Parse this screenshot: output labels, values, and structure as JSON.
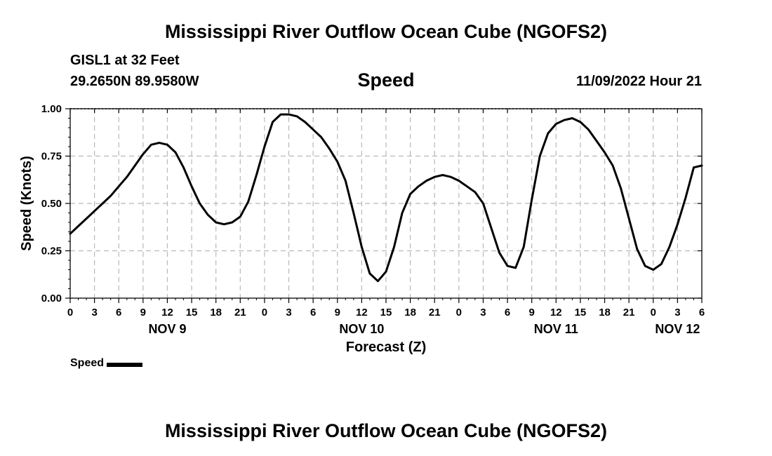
{
  "header": {
    "title_top": "Mississippi River Outflow Ocean Cube (NGOFS2)",
    "station": "GISL1 at 32 Feet",
    "coords": "29.2650N  89.9580W",
    "panel_title": "Speed",
    "datetime": "11/09/2022 Hour 21",
    "title_bottom": "Mississippi River Outflow Ocean Cube (NGOFS2)"
  },
  "legend": {
    "label": "Speed"
  },
  "chart_data": {
    "type": "line",
    "title": "Speed",
    "xlabel": "Forecast (Z)",
    "ylabel": "Speed (Knots)",
    "x_unit": "hours since 11/09/2022 00Z",
    "xlim": [
      0,
      78
    ],
    "ylim": [
      0,
      1
    ],
    "grid": true,
    "x_ticks": [
      {
        "x": 0,
        "label": "0"
      },
      {
        "x": 3,
        "label": "3"
      },
      {
        "x": 6,
        "label": "6"
      },
      {
        "x": 9,
        "label": "9"
      },
      {
        "x": 12,
        "label": "12"
      },
      {
        "x": 15,
        "label": "15"
      },
      {
        "x": 18,
        "label": "18"
      },
      {
        "x": 21,
        "label": "21"
      },
      {
        "x": 24,
        "label": "0"
      },
      {
        "x": 27,
        "label": "3"
      },
      {
        "x": 30,
        "label": "6"
      },
      {
        "x": 33,
        "label": "9"
      },
      {
        "x": 36,
        "label": "12"
      },
      {
        "x": 39,
        "label": "15"
      },
      {
        "x": 42,
        "label": "18"
      },
      {
        "x": 45,
        "label": "21"
      },
      {
        "x": 48,
        "label": "0"
      },
      {
        "x": 51,
        "label": "3"
      },
      {
        "x": 54,
        "label": "6"
      },
      {
        "x": 57,
        "label": "9"
      },
      {
        "x": 60,
        "label": "12"
      },
      {
        "x": 63,
        "label": "15"
      },
      {
        "x": 66,
        "label": "18"
      },
      {
        "x": 69,
        "label": "21"
      },
      {
        "x": 72,
        "label": "0"
      },
      {
        "x": 75,
        "label": "3"
      },
      {
        "x": 78,
        "label": "6"
      }
    ],
    "day_labels": [
      {
        "x": 12,
        "label": "NOV 9"
      },
      {
        "x": 36,
        "label": "NOV 10"
      },
      {
        "x": 60,
        "label": "NOV 11"
      },
      {
        "x": 75,
        "label": "NOV 12"
      }
    ],
    "y_ticks": [
      {
        "y": 0,
        "label": "0.00"
      },
      {
        "y": 0.25,
        "label": "0.25"
      },
      {
        "y": 0.5,
        "label": "0.50"
      },
      {
        "y": 0.75,
        "label": "0.75"
      },
      {
        "y": 1,
        "label": "1.00"
      }
    ],
    "series": [
      {
        "name": "Speed",
        "color": "#000000",
        "x": [
          0,
          1,
          2,
          3,
          4,
          5,
          6,
          7,
          8,
          9,
          10,
          11,
          12,
          13,
          14,
          15,
          16,
          17,
          18,
          19,
          20,
          21,
          22,
          23,
          24,
          25,
          26,
          27,
          28,
          29,
          30,
          31,
          32,
          33,
          34,
          35,
          36,
          37,
          38,
          39,
          40,
          41,
          42,
          43,
          44,
          45,
          46,
          47,
          48,
          49,
          50,
          51,
          52,
          53,
          54,
          55,
          56,
          57,
          58,
          59,
          60,
          61,
          62,
          63,
          64,
          65,
          66,
          67,
          68,
          69,
          70,
          71,
          72,
          73,
          74,
          75,
          76,
          77,
          78
        ],
        "values": [
          0.34,
          0.38,
          0.42,
          0.46,
          0.5,
          0.54,
          0.59,
          0.64,
          0.7,
          0.76,
          0.81,
          0.82,
          0.81,
          0.77,
          0.69,
          0.59,
          0.5,
          0.44,
          0.4,
          0.39,
          0.4,
          0.43,
          0.51,
          0.65,
          0.8,
          0.93,
          0.97,
          0.97,
          0.96,
          0.93,
          0.89,
          0.85,
          0.79,
          0.72,
          0.62,
          0.45,
          0.27,
          0.13,
          0.09,
          0.14,
          0.27,
          0.45,
          0.55,
          0.59,
          0.62,
          0.64,
          0.65,
          0.64,
          0.62,
          0.59,
          0.56,
          0.5,
          0.37,
          0.24,
          0.17,
          0.16,
          0.27,
          0.52,
          0.75,
          0.87,
          0.92,
          0.94,
          0.95,
          0.93,
          0.89,
          0.83,
          0.77,
          0.7,
          0.58,
          0.42,
          0.26,
          0.17,
          0.15,
          0.18,
          0.27,
          0.39,
          0.53,
          0.69,
          0.7
        ]
      }
    ]
  }
}
